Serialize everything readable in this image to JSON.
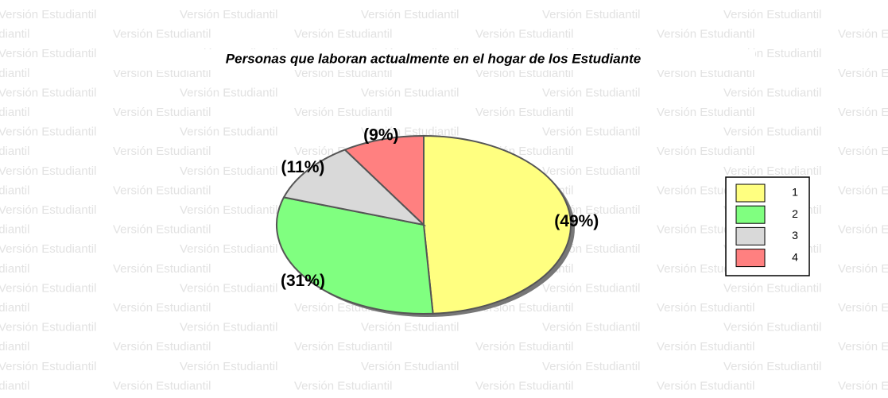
{
  "watermark": "Versión Estudiantil",
  "chart_data": {
    "type": "pie",
    "title": "Personas que laboran actualmente en el hogar de los Estudiante",
    "categories": [
      "1",
      "2",
      "3",
      "4"
    ],
    "values": [
      49,
      31,
      11,
      9
    ],
    "value_labels": [
      "(49%)",
      "(31%)",
      "(11%)",
      "(9%)"
    ],
    "colors": [
      "#ffff80",
      "#80ff80",
      "#d9d9d9",
      "#ff8080"
    ],
    "legend": "right"
  }
}
